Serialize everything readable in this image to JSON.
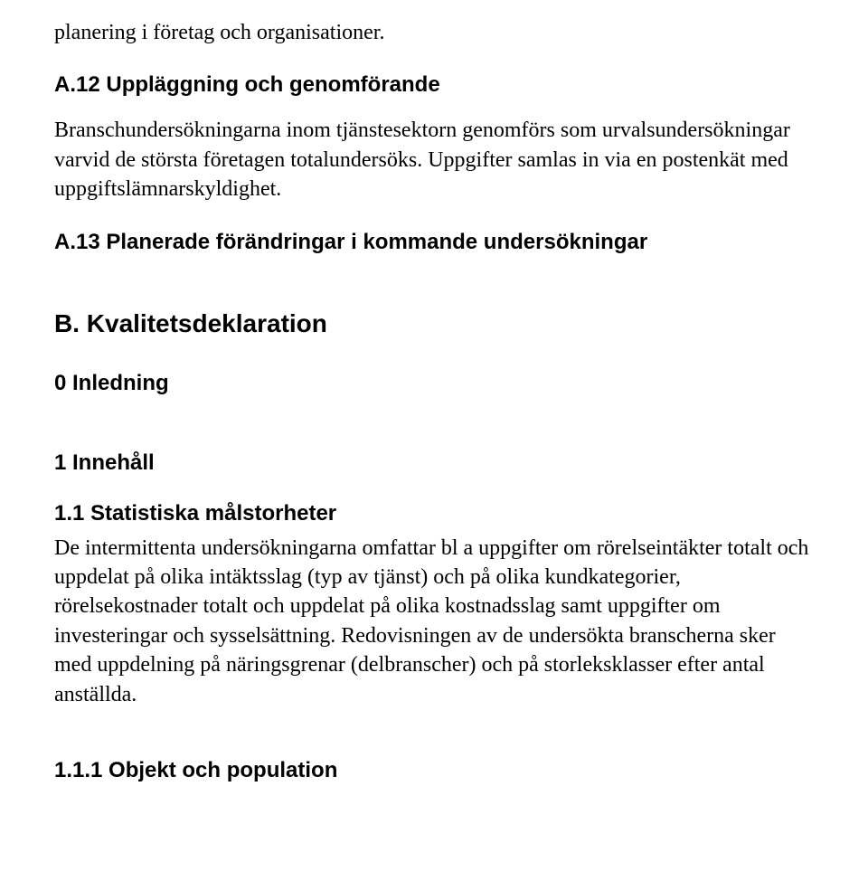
{
  "intro_fragment": "planering i företag och organisationer.",
  "a12": {
    "heading": "A.12 Uppläggning och genomförande",
    "paragraph": "Branschundersökningarna inom tjänstesektorn genomförs som urvalsundersökningar varvid de största företagen totalundersöks. Uppgifter samlas in via en postenkät med uppgiftslämnarskyldighet."
  },
  "a13_heading": "A.13 Planerade förändringar i kommande undersökningar",
  "section_b_heading": "B. Kvalitetsdeklaration",
  "h0_heading": "0 Inledning",
  "h1_heading": "1 Innehåll",
  "h11": {
    "heading": "1.1 Statistiska målstorheter",
    "paragraph": "De intermittenta undersökningarna omfattar bl a uppgifter om rörelseintäkter totalt och uppdelat på olika intäktsslag (typ av tjänst) och på olika kundkategorier, rörelsekostnader totalt och uppdelat på olika kostnadsslag samt uppgifter om investeringar och sysselsättning. Redovisningen av de undersökta branscherna sker med uppdelning på näringsgrenar (delbranscher)  och på storleksklasser efter antal anställda."
  },
  "h111_heading": "1.1.1 Objekt och population"
}
